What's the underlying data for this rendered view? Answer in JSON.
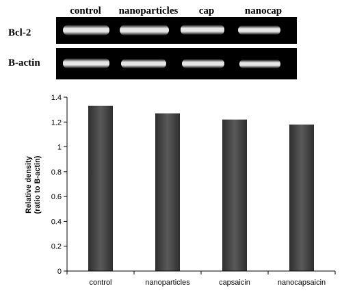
{
  "blot": {
    "lane_labels": [
      "control",
      "nanoparticles",
      "cap",
      "nanocap"
    ],
    "row_labels": [
      "Bcl-2",
      "B-actin"
    ]
  },
  "chart_data": {
    "type": "bar",
    "categories": [
      "control",
      "nanoparticles",
      "capsaicin",
      "nanocapsaicin"
    ],
    "values": [
      1.33,
      1.27,
      1.22,
      1.18
    ],
    "title": "",
    "xlabel": "",
    "ylabel_lines": [
      "Relative density",
      "(ratio to B-actin)"
    ],
    "ylim": [
      0,
      1.4
    ],
    "yticks": [
      "0",
      "0.2",
      "0.4",
      "0.6",
      "0.8",
      "1",
      "1.2",
      "1.4"
    ],
    "bar_color": "#4a4a4a",
    "grid": false,
    "legend": "none"
  }
}
